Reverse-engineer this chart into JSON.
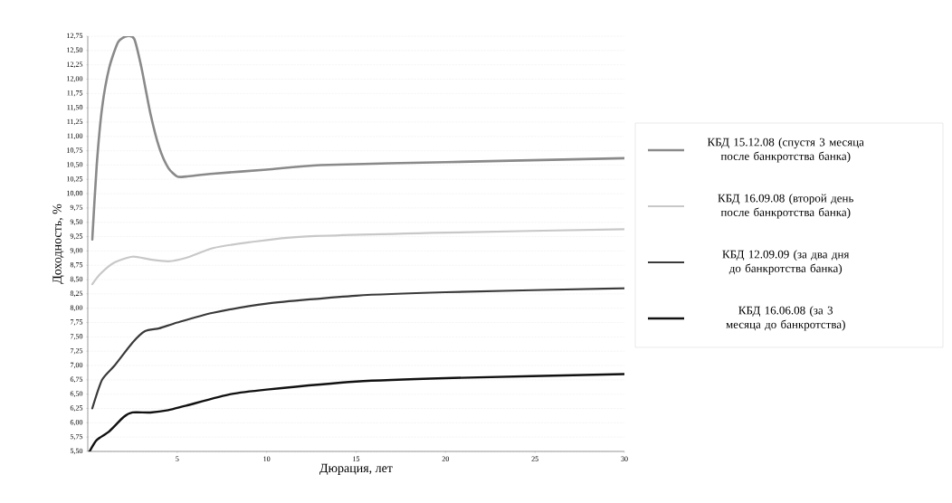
{
  "chart_data": {
    "type": "line",
    "xlabel": "Дюрация, лет",
    "ylabel": "Доходность, %",
    "xlim": [
      0,
      30
    ],
    "xticks": [
      5,
      10,
      15,
      20,
      25,
      30
    ],
    "ylim": [
      5.5,
      12.75
    ],
    "yticks": [
      {
        "value": 5.5,
        "label": "5,50"
      },
      {
        "value": 5.75,
        "label": "5,75"
      },
      {
        "value": 6.0,
        "label": "6,00"
      },
      {
        "value": 6.25,
        "label": "6,25"
      },
      {
        "value": 6.5,
        "label": "6,50"
      },
      {
        "value": 6.75,
        "label": "6,75"
      },
      {
        "value": 7.0,
        "label": "7,00"
      },
      {
        "value": 7.25,
        "label": "7,25"
      },
      {
        "value": 7.5,
        "label": "7,50"
      },
      {
        "value": 7.75,
        "label": "7,75"
      },
      {
        "value": 8.0,
        "label": "8,00"
      },
      {
        "value": 8.25,
        "label": "8,25"
      },
      {
        "value": 8.5,
        "label": "8,50"
      },
      {
        "value": 8.75,
        "label": "8,75"
      },
      {
        "value": 9.0,
        "label": "9,00"
      },
      {
        "value": 9.25,
        "label": "9,25"
      },
      {
        "value": 9.5,
        "label": "9,50"
      },
      {
        "value": 9.75,
        "label": "9,75"
      },
      {
        "value": 10.0,
        "label": "10,00"
      },
      {
        "value": 10.25,
        "label": "10,25"
      },
      {
        "value": 10.5,
        "label": "10,50"
      },
      {
        "value": 10.75,
        "label": "10,75"
      },
      {
        "value": 11.0,
        "label": "11,00"
      },
      {
        "value": 11.25,
        "label": "11,25"
      },
      {
        "value": 11.5,
        "label": "11,50"
      },
      {
        "value": 11.75,
        "label": "11,75"
      },
      {
        "value": 12.0,
        "label": "12,00"
      },
      {
        "value": 12.25,
        "label": "12,25"
      },
      {
        "value": 12.5,
        "label": "12,50"
      },
      {
        "value": 12.75,
        "label": "12,75"
      }
    ],
    "grid": "y",
    "legend": "right",
    "marker": "none",
    "line_style": "solid",
    "series": [
      {
        "name": "КБД 15.12.08 (спустя 3 месяца после банкротства банка)",
        "color": "#8a8a8a",
        "x": [
          0.25,
          0.5,
          0.8,
          1.2,
          1.7,
          2.2,
          2.6,
          3.0,
          3.5,
          4.0,
          4.5,
          5.0,
          5.5,
          7,
          10,
          13,
          20,
          30
        ],
        "values": [
          9.2,
          10.5,
          11.5,
          12.2,
          12.65,
          12.75,
          12.7,
          12.2,
          11.4,
          10.8,
          10.45,
          10.3,
          10.3,
          10.35,
          10.42,
          10.5,
          10.55,
          10.62
        ]
      },
      {
        "name": "КБД 16.09.08 (второй день после банкротства банка)",
        "color": "#c8c8c8",
        "x": [
          0.25,
          0.7,
          1.5,
          2.5,
          3.5,
          4.5,
          5.5,
          7,
          9,
          12,
          20,
          30
        ],
        "values": [
          8.42,
          8.6,
          8.8,
          8.9,
          8.85,
          8.82,
          8.88,
          9.05,
          9.15,
          9.25,
          9.32,
          9.38
        ]
      },
      {
        "name": "КБД 12.09.09 (за два дня до банкротства банка)",
        "color": "#3a3a3a",
        "x": [
          0.25,
          0.8,
          1.5,
          2.5,
          3.2,
          4,
          5,
          7,
          10,
          15,
          20,
          30
        ],
        "values": [
          6.25,
          6.75,
          7.0,
          7.4,
          7.6,
          7.65,
          7.75,
          7.92,
          8.08,
          8.22,
          8.28,
          8.35
        ]
      },
      {
        "name": "КБД 16.06.08 (за 3 месяца до банкротства)",
        "color": "#111111",
        "x": [
          0.1,
          0.5,
          1.2,
          2,
          2.5,
          3.5,
          4.5,
          5.5,
          8,
          10,
          15,
          20,
          30
        ],
        "values": [
          5.5,
          5.7,
          5.85,
          6.1,
          6.18,
          6.18,
          6.22,
          6.3,
          6.5,
          6.58,
          6.72,
          6.78,
          6.85
        ]
      }
    ]
  }
}
